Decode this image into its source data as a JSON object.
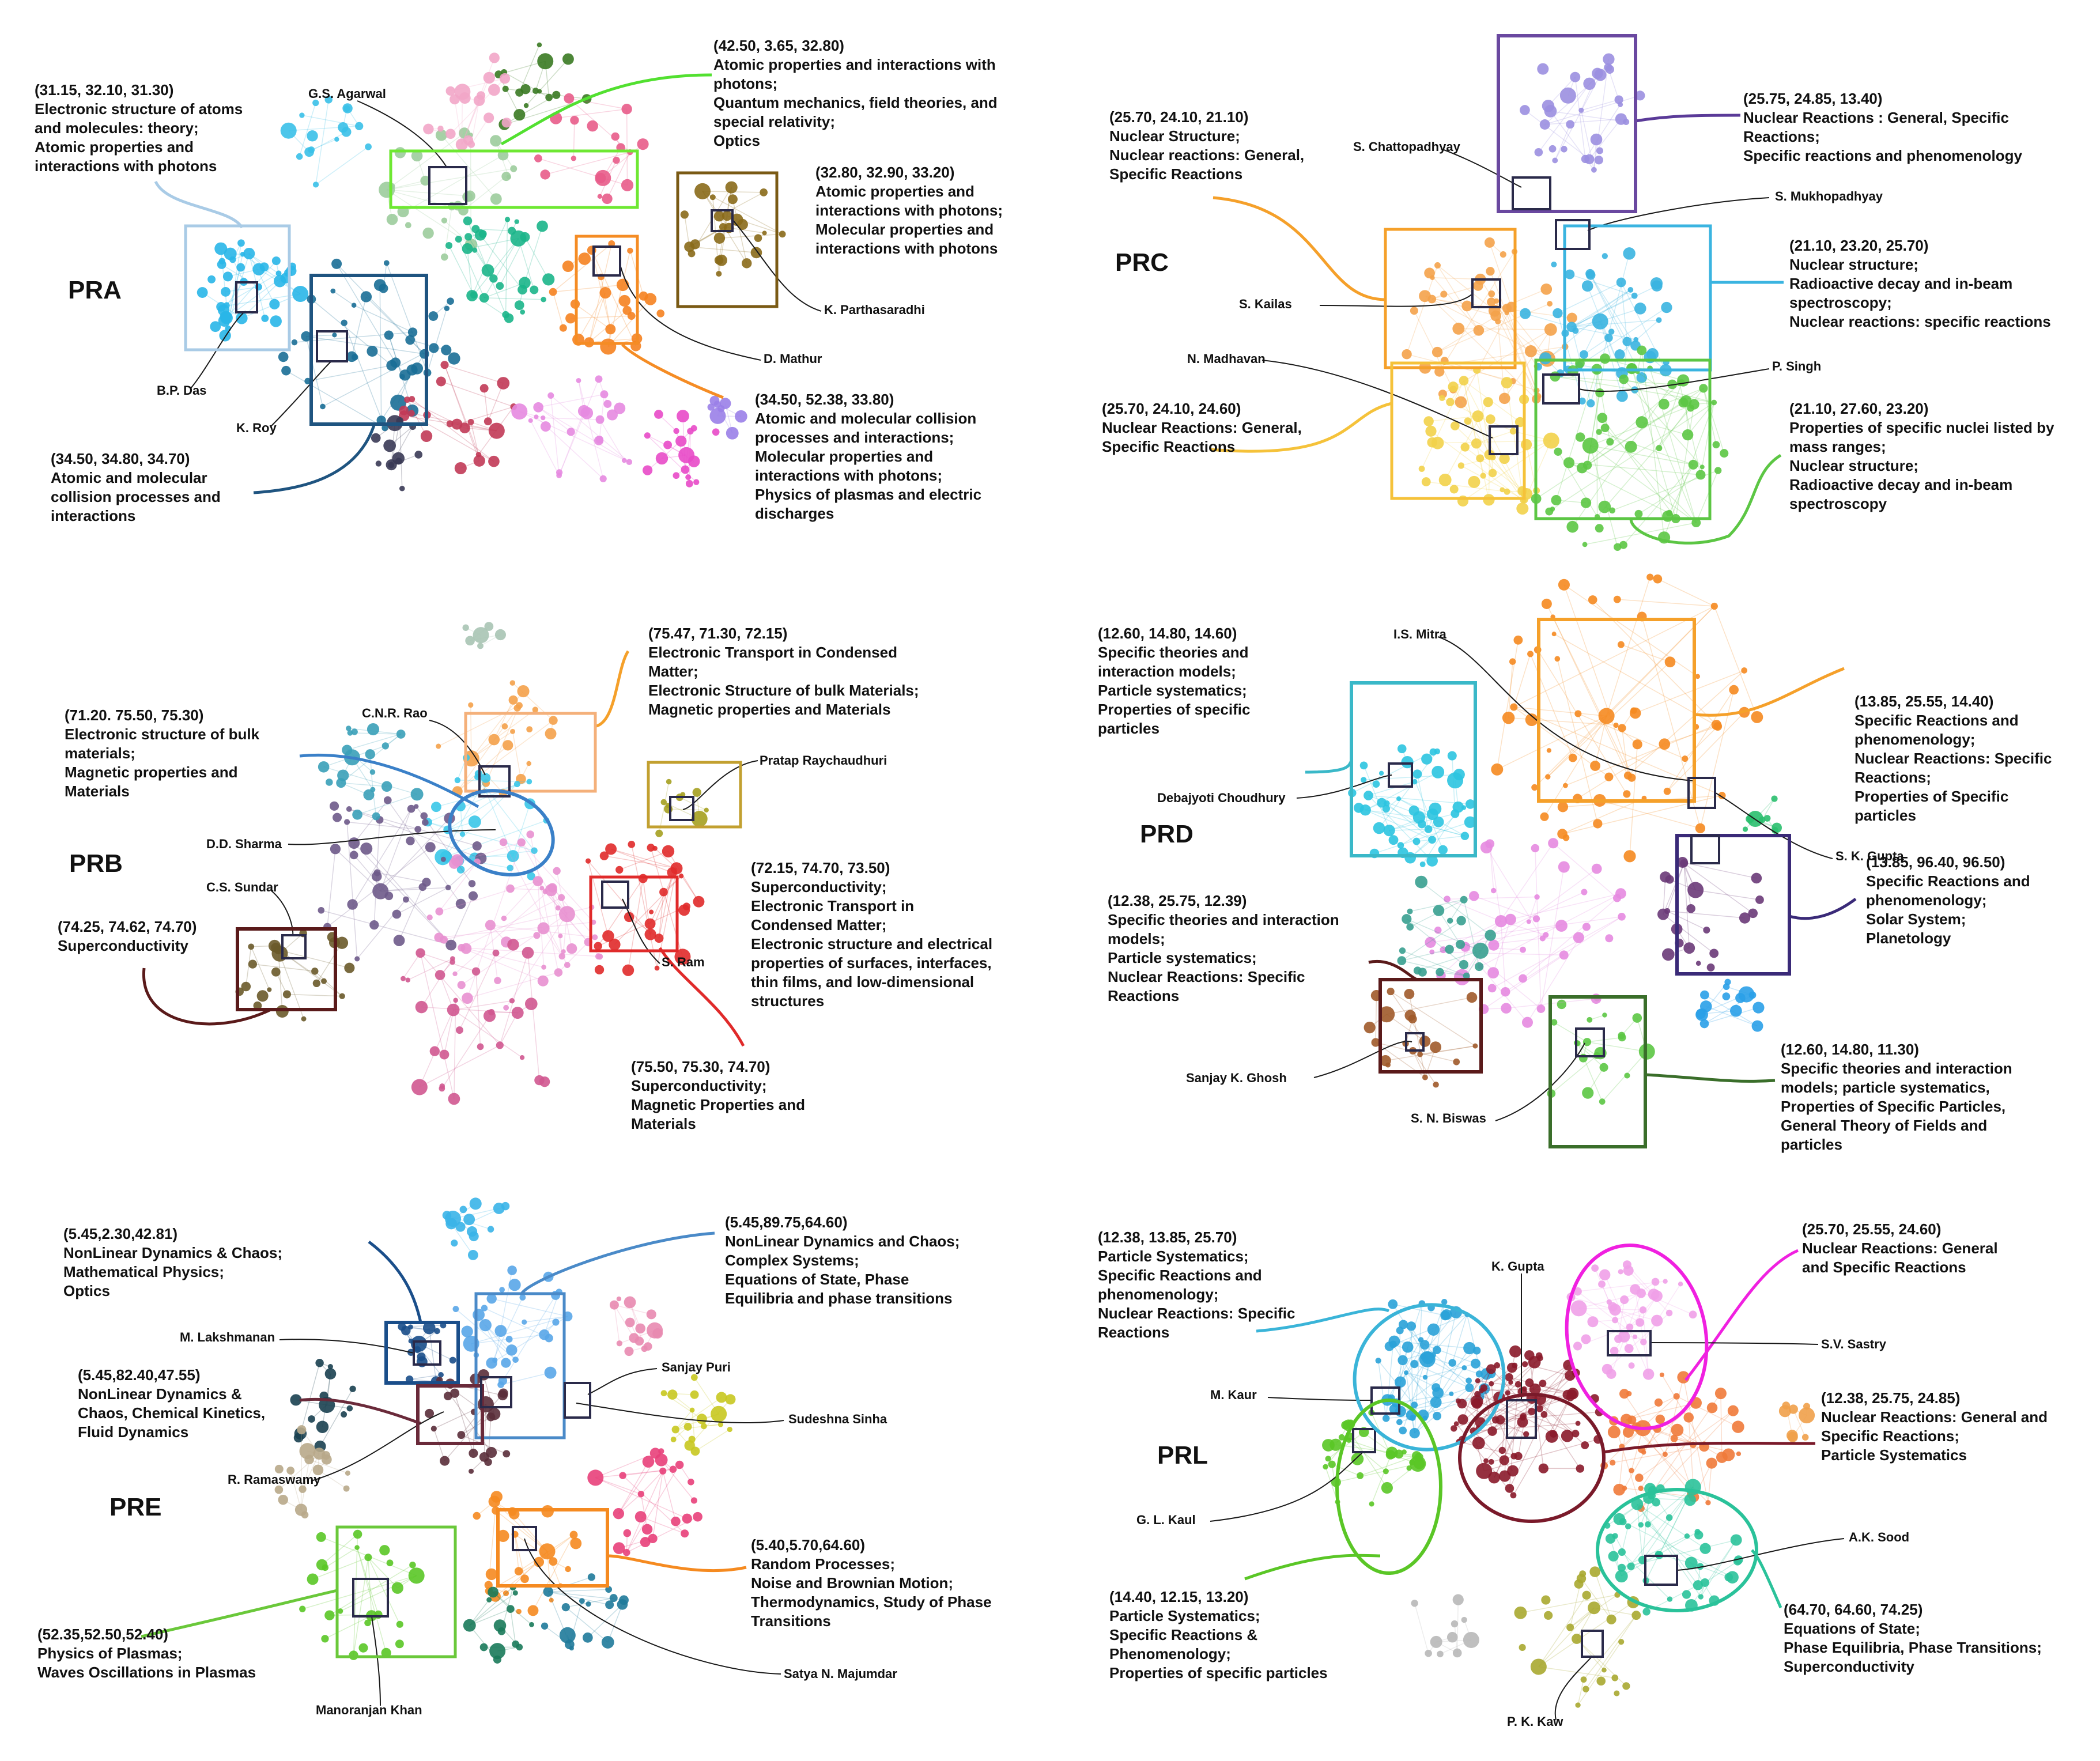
{
  "panels": [
    {
      "title": "PRA",
      "names": [
        "G.S. Agarwal",
        "B.P. Das",
        "K. Roy",
        "K. Parthasaradhi",
        "D. Mathur"
      ],
      "annotations": [
        {
          "lines": [
            "(31.15, 32.10, 31.30)",
            "Electronic structure of atoms",
            "and molecules: theory;",
            "Atomic properties and",
            "interactions with photons"
          ]
        },
        {
          "lines": [
            "(42.50, 3.65, 32.80)",
            "Atomic properties and interactions with",
            "photons;",
            "Quantum mechanics, field theories, and",
            "special relativity;",
            "Optics"
          ]
        },
        {
          "lines": [
            "(32.80, 32.90, 33.20)",
            "Atomic properties and",
            "interactions with photons;",
            "Molecular properties and",
            "interactions with photons"
          ]
        },
        {
          "lines": [
            "(34.50, 52.38, 33.80)",
            "Atomic and molecular collision",
            "processes and interactions;",
            "Molecular properties and",
            "interactions with photons;",
            "Physics of plasmas and electric",
            "discharges"
          ]
        },
        {
          "lines": [
            "(34.50, 34.80, 34.70)",
            "Atomic and molecular",
            "collision processes and",
            "interactions"
          ]
        }
      ]
    },
    {
      "title": "PRC",
      "names": [
        "S. Chattopadhyay",
        "S. Mukhopadhyay",
        "S. Kailas",
        "N. Madhavan",
        "P. Singh"
      ],
      "annotations": [
        {
          "lines": [
            "(25.75, 24.85, 13.40)",
            "Nuclear Reactions : General, Specific",
            "Reactions;",
            "Specific reactions and phenomenology"
          ]
        },
        {
          "lines": [
            "(25.70, 24.10, 21.10)",
            "Nuclear Structure;",
            "Nuclear reactions: General,",
            "Specific Reactions"
          ]
        },
        {
          "lines": [
            "(21.10, 23.20, 25.70)",
            "Nuclear structure;",
            "Radioactive decay and in-beam",
            "spectroscopy;",
            "Nuclear reactions: specific reactions"
          ]
        },
        {
          "lines": [
            "(25.70, 24.10, 24.60)",
            "Nuclear Reactions: General,",
            "Specific Reactions"
          ]
        },
        {
          "lines": [
            "(21.10, 27.60, 23.20)",
            "Properties of specific nuclei listed by",
            "mass ranges;",
            "Nuclear structure;",
            "Radioactive decay and in-beam",
            "spectroscopy"
          ]
        }
      ]
    },
    {
      "title": "PRB",
      "names": [
        "C.N.R. Rao",
        "Pratap Raychaudhuri",
        "D.D. Sharma",
        "C.S. Sundar",
        "S. Ram"
      ],
      "annotations": [
        {
          "lines": [
            "(75.47, 71.30, 72.15)",
            "Electronic Transport in Condensed",
            "Matter;",
            "Electronic Structure of bulk Materials;",
            "Magnetic properties and Materials"
          ]
        },
        {
          "lines": [
            "(71.20. 75.50, 75.30)",
            "Electronic structure of bulk",
            "materials;",
            "Magnetic properties and",
            "Materials"
          ]
        },
        {
          "lines": [
            "(72.15, 74.70, 73.50)",
            "Superconductivity;",
            "Electronic Transport in",
            "Condensed Matter;",
            "Electronic structure and electrical",
            "properties of surfaces, interfaces,",
            "thin films, and low-dimensional",
            "structures"
          ]
        },
        {
          "lines": [
            "(74.25, 74.62, 74.70)",
            "Superconductivity"
          ]
        },
        {
          "lines": [
            "(75.50, 75.30, 74.70)",
            "Superconductivity;",
            "Magnetic Properties and",
            "Materials"
          ]
        }
      ]
    },
    {
      "title": "PRD",
      "names": [
        "I.S. Mitra",
        "Debajyoti Choudhury",
        "S. K. Gupta",
        "Sanjay K. Ghosh",
        "S. N. Biswas"
      ],
      "annotations": [
        {
          "lines": [
            "(12.60, 14.80, 14.60)",
            "Specific theories and",
            "interaction models;",
            "Particle systematics;",
            "Properties of specific",
            "particles"
          ]
        },
        {
          "lines": [
            "(13.85, 25.55, 14.40)",
            "Specific Reactions and",
            "phenomenology;",
            "Nuclear Reactions: Specific",
            "Reactions;",
            "Properties of Specific",
            "particles"
          ]
        },
        {
          "lines": [
            "(12.38, 25.75, 12.39)",
            "Specific theories and interaction",
            "models;",
            "Particle systematics;",
            "Nuclear Reactions: Specific",
            "Reactions"
          ]
        },
        {
          "lines": [
            "(13.85, 96.40, 96.50)",
            "Specific Reactions and",
            "phenomenology;",
            "Solar System;",
            "Planetology"
          ]
        },
        {
          "lines": [
            "(12.60, 14.80, 11.30)",
            "Specific theories and interaction",
            "models; particle systematics,",
            "Properties of Specific Particles,",
            "General Theory of Fields and",
            "particles"
          ]
        }
      ]
    },
    {
      "title": "PRE",
      "names": [
        "M. Lakshmanan",
        "Sanjay Puri",
        "Sudeshna Sinha",
        "R. Ramaswamy",
        "Manoranjan Khan",
        "Satya N. Majumdar"
      ],
      "annotations": [
        {
          "lines": [
            "(5.45,2.30,42.81)",
            "NonLinear Dynamics & Chaos;",
            "Mathematical Physics;",
            "Optics"
          ]
        },
        {
          "lines": [
            "(5.45,89.75,64.60)",
            "NonLinear Dynamics and Chaos;",
            "Complex Systems;",
            "Equations of State, Phase",
            "Equilibria and phase transitions"
          ]
        },
        {
          "lines": [
            "(5.45,82.40,47.55)",
            "NonLinear Dynamics &",
            "Chaos, Chemical Kinetics,",
            "Fluid Dynamics"
          ]
        },
        {
          "lines": [
            "(5.40,5.70,64.60)",
            "Random Processes;",
            "Noise and Brownian Motion;",
            "Thermodynamics, Study of Phase",
            "Transitions"
          ]
        },
        {
          "lines": [
            "(52.35,52.50,52.40)",
            "Physics of Plasmas;",
            "Waves Oscillations in Plasmas"
          ]
        }
      ]
    },
    {
      "title": "PRL",
      "names": [
        "K. Gupta",
        "S.V. Sastry",
        "M. Kaur",
        "G. L. Kaul",
        "A.K. Sood",
        "P. K. Kaw"
      ],
      "annotations": [
        {
          "lines": [
            "(12.38, 13.85, 25.70)",
            "Particle Systematics;",
            "Specific Reactions and",
            "phenomenology;",
            "Nuclear Reactions: Specific",
            "Reactions"
          ]
        },
        {
          "lines": [
            "(25.70, 25.55, 24.60)",
            "Nuclear Reactions: General",
            "and Specific Reactions"
          ]
        },
        {
          "lines": [
            "(12.38, 25.75, 24.85)",
            "Nuclear Reactions: General and",
            "Specific Reactions;",
            "Particle Systematics"
          ]
        },
        {
          "lines": [
            "(14.40, 12.15, 13.20)",
            "Particle Systematics;",
            "Specific Reactions &",
            "Phenomenology;",
            "Properties of specific particles"
          ]
        },
        {
          "lines": [
            "(64.70, 64.60, 74.25)",
            "Equations of State;",
            "Phase Equilibria, Phase Transitions;",
            "Superconductivity"
          ]
        }
      ]
    }
  ]
}
